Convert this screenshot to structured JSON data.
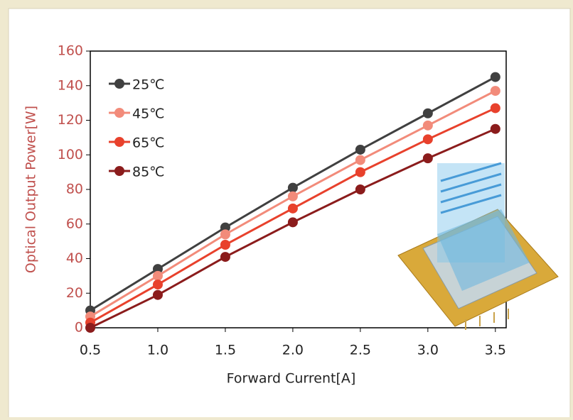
{
  "chart_data": {
    "type": "line",
    "x_label": "Forward Current[A]",
    "y_label": "Optical Output Power[W]",
    "x": [
      0.5,
      1.0,
      1.5,
      2.0,
      2.5,
      3.0,
      3.5
    ],
    "series": [
      {
        "name": "25℃",
        "color": "#404040",
        "values": [
          10,
          34,
          58,
          81,
          103,
          124,
          145
        ]
      },
      {
        "name": "45℃",
        "color": "#f28b7a",
        "values": [
          6.5,
          30,
          54,
          76,
          97,
          117,
          137
        ]
      },
      {
        "name": "65℃",
        "color": "#e8412c",
        "values": [
          3,
          25,
          48,
          69,
          90,
          109,
          127
        ]
      },
      {
        "name": "85℃",
        "color": "#8b1c1c",
        "values": [
          0,
          19,
          41,
          61,
          80,
          98,
          115
        ]
      }
    ],
    "xlim": [
      0.5,
      3.58
    ],
    "ylim": [
      0,
      160
    ],
    "xticks": [
      0.5,
      {
        "value": 1,
        "label": "1.0"
      },
      1.5,
      {
        "value": 2,
        "label": "2.0"
      },
      2.5,
      {
        "value": 3,
        "label": "3.0"
      },
      3.5
    ],
    "yticks": [
      0,
      20,
      40,
      60,
      80,
      100,
      120,
      140,
      160
    ],
    "y_label_color": "#c0504d"
  }
}
